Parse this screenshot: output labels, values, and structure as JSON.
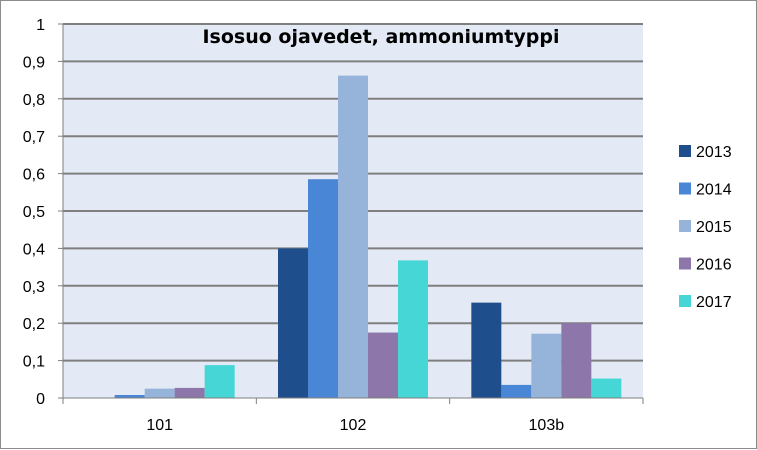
{
  "chart_data": {
    "type": "bar",
    "title": "Isosuo ojavedet, ammoniumtyppi",
    "xlabel": "",
    "ylabel": "",
    "categories": [
      "101",
      "102",
      "103b"
    ],
    "series": [
      {
        "name": "2013",
        "color": "#1f4e8c",
        "values": [
          0,
          0.4,
          0.255
        ]
      },
      {
        "name": "2014",
        "color": "#4a86d6",
        "values": [
          0.008,
          0.585,
          0.035
        ]
      },
      {
        "name": "2015",
        "color": "#96b4d9",
        "values": [
          0.025,
          0.862,
          0.172
        ]
      },
      {
        "name": "2016",
        "color": "#8d77aa",
        "values": [
          0.027,
          0.175,
          0.2
        ]
      },
      {
        "name": "2017",
        "color": "#47d6d6",
        "values": [
          0.088,
          0.368,
          0.052
        ]
      }
    ],
    "yticks": [
      "0",
      "0,1",
      "0,2",
      "0,3",
      "0,4",
      "0,5",
      "0,6",
      "0,7",
      "0,8",
      "0,9",
      "1"
    ],
    "ylim": [
      0,
      1
    ],
    "grid": true,
    "legend_position": "right"
  }
}
